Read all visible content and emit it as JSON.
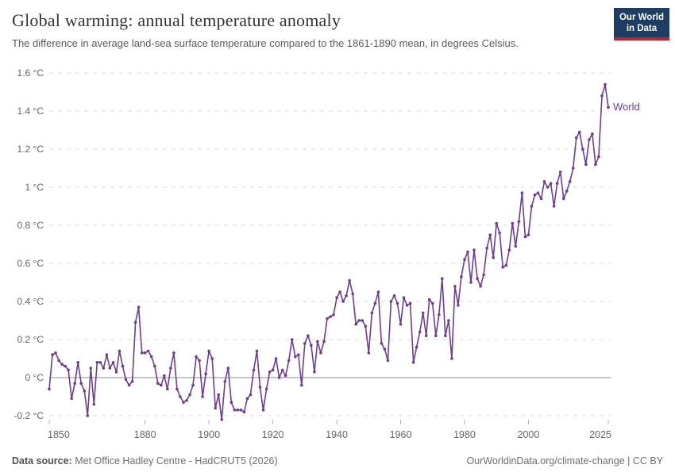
{
  "header": {
    "title": "Global warming: annual temperature anomaly",
    "subtitle": "The difference in average land-sea surface temperature compared to the 1861-1890 mean, in degrees Celsius.",
    "logo": {
      "line1": "Our World",
      "line2": "in Data",
      "bg_color": "#1d3d63",
      "accent_color": "#c0262d"
    }
  },
  "footer": {
    "source_label": "Data source:",
    "source_value": "Met Office Hadley Centre - HadCRUT5 (2026)",
    "link": "OurWorldinData.org/climate-change | CC BY"
  },
  "chart_data": {
    "type": "line",
    "title": "Global warming: annual temperature anomaly",
    "xlabel": "",
    "ylabel": "",
    "unit": "°C",
    "xlim": [
      1850,
      2025
    ],
    "ylim": [
      -0.25,
      1.65
    ],
    "grid": "horizontal dashed",
    "zero_line": true,
    "legend_position": "end-of-line",
    "x_ticks": [
      1850,
      1880,
      1900,
      1920,
      1940,
      1960,
      1980,
      2000,
      2025
    ],
    "y_ticks": [
      -0.2,
      0,
      0.2,
      0.4,
      0.6,
      0.8,
      1,
      1.2,
      1.4,
      1.6
    ],
    "y_tick_labels": [
      "-0.2 °C",
      "0 °C",
      "0.2 °C",
      "0.4 °C",
      "0.6 °C",
      "0.8 °C",
      "1 °C",
      "1.2 °C",
      "1.4 °C",
      "1.6 °C"
    ],
    "series": [
      {
        "name": "World",
        "color": "#6d3e91",
        "x": [
          1850,
          1851,
          1852,
          1853,
          1854,
          1855,
          1856,
          1857,
          1858,
          1859,
          1860,
          1861,
          1862,
          1863,
          1864,
          1865,
          1866,
          1867,
          1868,
          1869,
          1870,
          1871,
          1872,
          1873,
          1874,
          1875,
          1876,
          1877,
          1878,
          1879,
          1880,
          1881,
          1882,
          1883,
          1884,
          1885,
          1886,
          1887,
          1888,
          1889,
          1890,
          1891,
          1892,
          1893,
          1894,
          1895,
          1896,
          1897,
          1898,
          1899,
          1900,
          1901,
          1902,
          1903,
          1904,
          1905,
          1906,
          1907,
          1908,
          1909,
          1910,
          1911,
          1912,
          1913,
          1914,
          1915,
          1916,
          1917,
          1918,
          1919,
          1920,
          1921,
          1922,
          1923,
          1924,
          1925,
          1926,
          1927,
          1928,
          1929,
          1930,
          1931,
          1932,
          1933,
          1934,
          1935,
          1936,
          1937,
          1938,
          1939,
          1940,
          1941,
          1942,
          1943,
          1944,
          1945,
          1946,
          1947,
          1948,
          1949,
          1950,
          1951,
          1952,
          1953,
          1954,
          1955,
          1956,
          1957,
          1958,
          1959,
          1960,
          1961,
          1962,
          1963,
          1964,
          1965,
          1966,
          1967,
          1968,
          1969,
          1970,
          1971,
          1972,
          1973,
          1974,
          1975,
          1976,
          1977,
          1978,
          1979,
          1980,
          1981,
          1982,
          1983,
          1984,
          1985,
          1986,
          1987,
          1988,
          1989,
          1990,
          1991,
          1992,
          1993,
          1994,
          1995,
          1996,
          1997,
          1998,
          1999,
          2000,
          2001,
          2002,
          2003,
          2004,
          2005,
          2006,
          2007,
          2008,
          2009,
          2010,
          2011,
          2012,
          2013,
          2014,
          2015,
          2016,
          2017,
          2018,
          2019,
          2020,
          2021,
          2022,
          2023,
          2024,
          2025
        ],
        "values": [
          -0.06,
          0.12,
          0.13,
          0.09,
          0.07,
          0.06,
          0.04,
          -0.11,
          -0.03,
          0.08,
          -0.03,
          -0.07,
          -0.2,
          0.05,
          -0.14,
          0.08,
          0.08,
          0.05,
          0.12,
          0.05,
          0.08,
          0.03,
          0.14,
          0.06,
          -0.01,
          -0.04,
          -0.02,
          0.29,
          0.37,
          0.13,
          0.13,
          0.14,
          0.11,
          0.06,
          -0.03,
          -0.04,
          0.01,
          -0.06,
          0.05,
          0.13,
          -0.06,
          -0.1,
          -0.13,
          -0.12,
          -0.09,
          -0.04,
          0.11,
          0.09,
          -0.1,
          0.02,
          0.14,
          0.1,
          -0.16,
          -0.09,
          -0.22,
          -0.02,
          0.05,
          -0.13,
          -0.17,
          -0.17,
          -0.17,
          -0.18,
          -0.11,
          -0.09,
          0.04,
          0.14,
          -0.05,
          -0.17,
          -0.06,
          0.03,
          0.04,
          0.1,
          0,
          0.04,
          0.01,
          0.09,
          0.2,
          0.11,
          0.12,
          -0.04,
          0.18,
          0.22,
          0.17,
          0.03,
          0.19,
          0.13,
          0.19,
          0.31,
          0.32,
          0.33,
          0.42,
          0.45,
          0.4,
          0.43,
          0.51,
          0.44,
          0.28,
          0.3,
          0.3,
          0.27,
          0.13,
          0.34,
          0.39,
          0.45,
          0.18,
          0.15,
          0.09,
          0.4,
          0.43,
          0.39,
          0.28,
          0.42,
          0.38,
          0.39,
          0.08,
          0.16,
          0.24,
          0.34,
          0.22,
          0.41,
          0.39,
          0.22,
          0.33,
          0.52,
          0.22,
          0.3,
          0.1,
          0.48,
          0.38,
          0.53,
          0.62,
          0.66,
          0.5,
          0.67,
          0.52,
          0.48,
          0.54,
          0.68,
          0.75,
          0.63,
          0.81,
          0.76,
          0.58,
          0.59,
          0.67,
          0.81,
          0.69,
          0.82,
          0.97,
          0.74,
          0.75,
          0.9,
          0.96,
          0.97,
          0.94,
          1.03,
          1,
          1.02,
          0.9,
          1.02,
          1.08,
          0.94,
          0.98,
          1.03,
          1.1,
          1.26,
          1.29,
          1.2,
          1.12,
          1.25,
          1.28,
          1.12,
          1.16,
          1.48,
          1.54,
          1.42
        ]
      }
    ]
  }
}
